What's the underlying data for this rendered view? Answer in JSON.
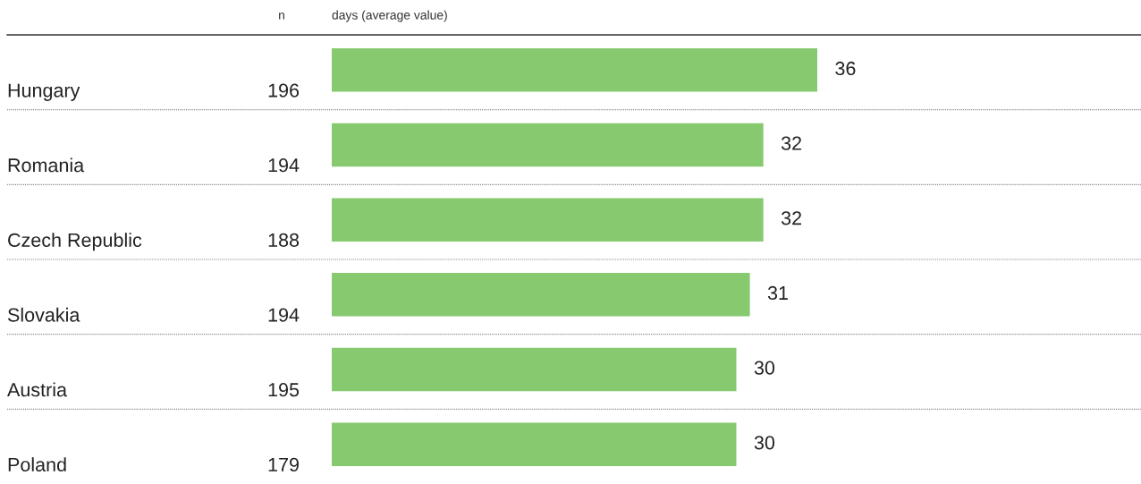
{
  "chart_data": {
    "type": "bar",
    "orientation": "horizontal",
    "xlabel": "days (average value)",
    "categories": [
      "Hungary",
      "Romania",
      "Czech Republic",
      "Slovakia",
      "Austria",
      "Poland"
    ],
    "values": [
      36,
      32,
      32,
      31,
      30,
      30
    ],
    "color": "#86c96e",
    "xlim": [
      0,
      60
    ],
    "data_labels": true,
    "annotations": [
      "n",
      "196",
      "194",
      "188",
      "194",
      "195",
      "179"
    ]
  }
}
